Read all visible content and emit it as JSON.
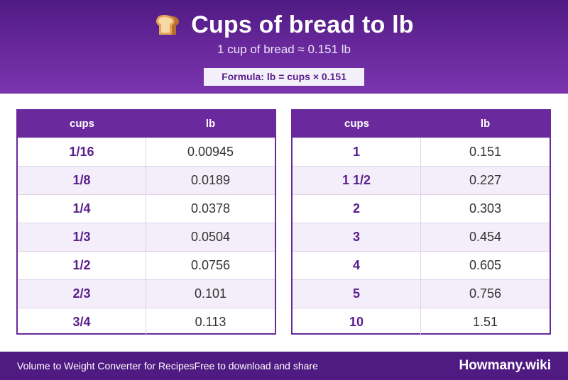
{
  "header": {
    "icon": "bread-icon",
    "title": "Cups of bread to lb",
    "subtitle": "1 cup of bread ≈ 0.151 lb",
    "formula": "Formula: lb = cups × 0.151"
  },
  "tables": [
    {
      "headers": [
        "cups",
        "lb"
      ],
      "rows": [
        {
          "cups": "1/16",
          "lb": "0.00945"
        },
        {
          "cups": "1/8",
          "lb": "0.0189"
        },
        {
          "cups": "1/4",
          "lb": "0.0378"
        },
        {
          "cups": "1/3",
          "lb": "0.0504"
        },
        {
          "cups": "1/2",
          "lb": "0.0756"
        },
        {
          "cups": "2/3",
          "lb": "0.101"
        },
        {
          "cups": "3/4",
          "lb": "0.113"
        }
      ]
    },
    {
      "headers": [
        "cups",
        "lb"
      ],
      "rows": [
        {
          "cups": "1",
          "lb": "0.151"
        },
        {
          "cups": "1 1/2",
          "lb": "0.227"
        },
        {
          "cups": "2",
          "lb": "0.303"
        },
        {
          "cups": "3",
          "lb": "0.454"
        },
        {
          "cups": "4",
          "lb": "0.605"
        },
        {
          "cups": "5",
          "lb": "0.756"
        },
        {
          "cups": "10",
          "lb": "1.51"
        }
      ]
    }
  ],
  "footer": {
    "left_text": "Volume to Weight Converter for RecipesFree to download and share",
    "brand": "Howmany.wiki"
  },
  "colors": {
    "header_purple": "#6a2a9e",
    "footer_purple": "#4f1a82",
    "row_alt": "#f3eefa",
    "cups_text": "#5a1e8c"
  }
}
